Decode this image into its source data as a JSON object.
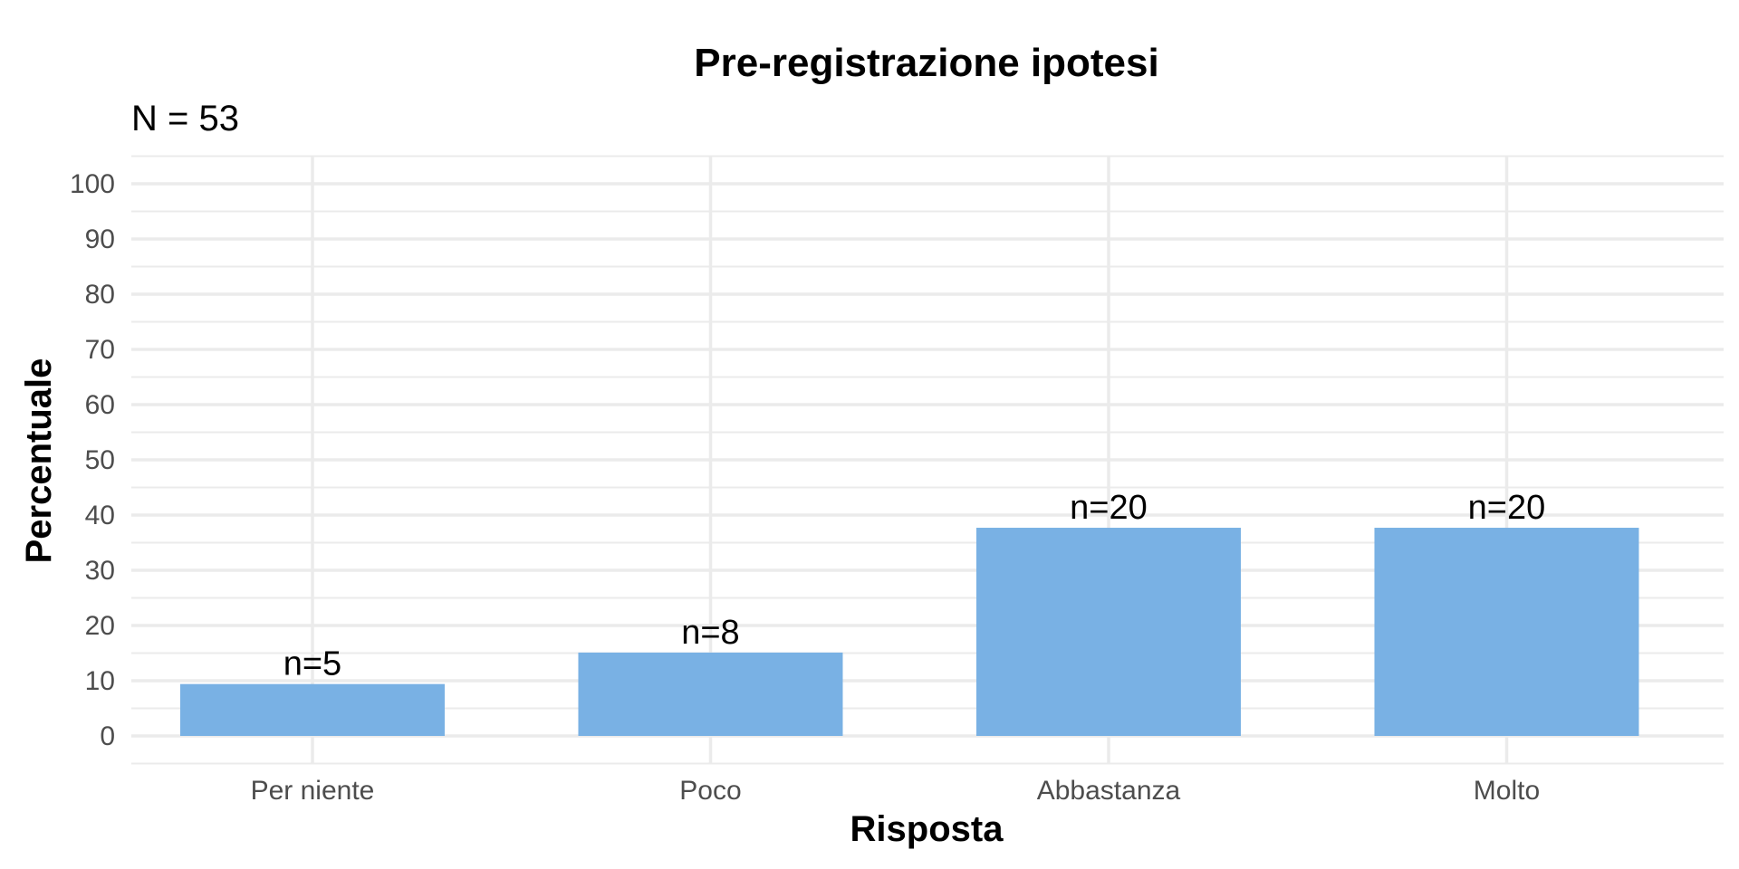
{
  "chart_data": {
    "type": "bar",
    "title": "Pre-registrazione ipotesi",
    "subtitle": "N = 53",
    "xlabel": "Risposta",
    "ylabel": "Percentuale",
    "categories": [
      "Per niente",
      "Poco",
      "Abbastanza",
      "Molto"
    ],
    "values": [
      9.4,
      15.1,
      37.7,
      37.7
    ],
    "data_labels": [
      "n=5",
      "n=8",
      "n=20",
      "n=20"
    ],
    "ylim": [
      0,
      100
    ],
    "yticks": [
      0,
      10,
      20,
      30,
      40,
      50,
      60,
      70,
      80,
      90,
      100
    ],
    "grid": true,
    "bar_color": "#79b1e4",
    "grid_color": "#ebebeb"
  }
}
